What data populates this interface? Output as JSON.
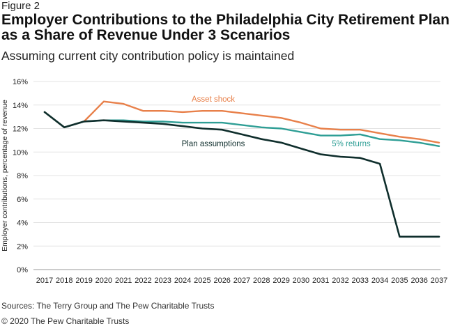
{
  "figure_label": "Figure 2",
  "sources": "Sources: The Terry Group and The Pew Charitable Trusts",
  "copyright": "© 2020 The Pew Charitable Trusts",
  "chart_data": {
    "type": "line",
    "title": "Employer Contributions to the Philadelphia City Retirement Plan as a Share of Revenue Under 3 Scenarios",
    "subtitle": "Assuming current city contribution policy is maintained",
    "xlabel": "",
    "ylabel": "Employer contributions, percentage of revenue",
    "ylim": [
      0,
      16
    ],
    "yticks": [
      "0%",
      "2%",
      "4%",
      "6%",
      "8%",
      "10%",
      "12%",
      "14%",
      "16%"
    ],
    "grid": "horizontal",
    "x": [
      2017,
      2018,
      2019,
      2020,
      2021,
      2022,
      2023,
      2024,
      2025,
      2026,
      2027,
      2028,
      2029,
      2030,
      2031,
      2032,
      2033,
      2034,
      2035,
      2036,
      2037
    ],
    "series": [
      {
        "name": "Asset shock",
        "color": "#e8804a",
        "values": [
          13.4,
          12.1,
          12.6,
          14.3,
          14.1,
          13.5,
          13.5,
          13.4,
          13.5,
          13.5,
          13.3,
          13.1,
          12.9,
          12.5,
          12.0,
          11.9,
          11.9,
          11.6,
          11.3,
          11.1,
          10.8
        ]
      },
      {
        "name": "5% returns",
        "color": "#2e9e95",
        "values": [
          13.4,
          12.1,
          12.6,
          12.7,
          12.7,
          12.6,
          12.6,
          12.5,
          12.5,
          12.5,
          12.3,
          12.1,
          12.0,
          11.7,
          11.4,
          11.4,
          11.5,
          11.1,
          11.0,
          10.8,
          10.5
        ]
      },
      {
        "name": "Plan assumptions",
        "color": "#0f2e2c",
        "values": [
          13.4,
          12.1,
          12.6,
          12.7,
          12.6,
          12.5,
          12.4,
          12.2,
          12.0,
          11.9,
          11.5,
          11.1,
          10.8,
          10.3,
          9.8,
          9.6,
          9.5,
          9.0,
          2.8,
          2.8,
          2.8
        ]
      }
    ]
  }
}
